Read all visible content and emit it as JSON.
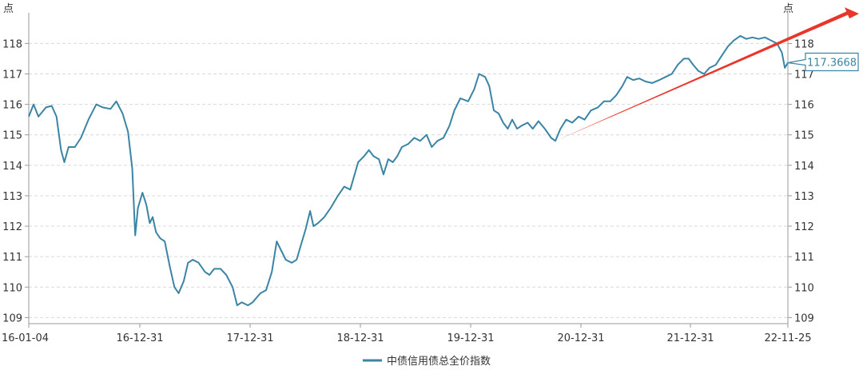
{
  "chart_data": {
    "type": "line",
    "title": "",
    "y_unit_left": "点",
    "y_unit_right": "点",
    "ylim": [
      108.8,
      118.85
    ],
    "y_ticks": [
      109,
      110,
      111,
      112,
      113,
      114,
      115,
      116,
      117,
      118
    ],
    "x_ticks": [
      "16-01-04",
      "16-12-31",
      "17-12-31",
      "18-12-31",
      "19-12-31",
      "20-12-31",
      "21-12-31",
      "22-11-25"
    ],
    "xlim": [
      "2016-01-04",
      "2022-11-25"
    ],
    "grid": true,
    "legend_position": "bottom",
    "series": [
      {
        "name": "中债信用债总全价指数",
        "color": "#3a84a6",
        "points": [
          [
            "2016-01-04",
            115.6
          ],
          [
            "2016-01-20",
            116.0
          ],
          [
            "2016-02-05",
            115.6
          ],
          [
            "2016-03-01",
            115.9
          ],
          [
            "2016-03-20",
            115.95
          ],
          [
            "2016-04-05",
            115.6
          ],
          [
            "2016-04-20",
            114.5
          ],
          [
            "2016-05-01",
            114.1
          ],
          [
            "2016-05-15",
            114.6
          ],
          [
            "2016-06-05",
            114.6
          ],
          [
            "2016-06-25",
            114.9
          ],
          [
            "2016-07-20",
            115.5
          ],
          [
            "2016-08-15",
            116.0
          ],
          [
            "2016-09-05",
            115.9
          ],
          [
            "2016-10-01",
            115.85
          ],
          [
            "2016-10-20",
            116.1
          ],
          [
            "2016-11-10",
            115.7
          ],
          [
            "2016-11-28",
            115.1
          ],
          [
            "2016-12-12",
            113.9
          ],
          [
            "2016-12-22",
            111.7
          ],
          [
            "2016-12-31",
            112.6
          ],
          [
            "2017-01-15",
            113.1
          ],
          [
            "2017-01-28",
            112.7
          ],
          [
            "2017-02-08",
            112.1
          ],
          [
            "2017-02-18",
            112.3
          ],
          [
            "2017-03-01",
            111.8
          ],
          [
            "2017-03-15",
            111.6
          ],
          [
            "2017-03-30",
            111.5
          ],
          [
            "2017-04-15",
            110.7
          ],
          [
            "2017-05-01",
            110.0
          ],
          [
            "2017-05-15",
            109.8
          ],
          [
            "2017-06-01",
            110.2
          ],
          [
            "2017-06-15",
            110.8
          ],
          [
            "2017-07-01",
            110.9
          ],
          [
            "2017-07-20",
            110.8
          ],
          [
            "2017-08-10",
            110.5
          ],
          [
            "2017-08-25",
            110.4
          ],
          [
            "2017-09-10",
            110.6
          ],
          [
            "2017-10-01",
            110.6
          ],
          [
            "2017-10-20",
            110.4
          ],
          [
            "2017-11-10",
            110.0
          ],
          [
            "2017-11-25",
            109.4
          ],
          [
            "2017-12-10",
            109.5
          ],
          [
            "2017-12-31",
            109.4
          ],
          [
            "2018-01-15",
            109.5
          ],
          [
            "2018-02-10",
            109.8
          ],
          [
            "2018-03-01",
            109.9
          ],
          [
            "2018-03-20",
            110.5
          ],
          [
            "2018-04-05",
            111.5
          ],
          [
            "2018-04-20",
            111.2
          ],
          [
            "2018-05-05",
            110.9
          ],
          [
            "2018-05-25",
            110.8
          ],
          [
            "2018-06-10",
            110.9
          ],
          [
            "2018-06-25",
            111.4
          ],
          [
            "2018-07-10",
            111.9
          ],
          [
            "2018-07-25",
            112.5
          ],
          [
            "2018-08-05",
            112.0
          ],
          [
            "2018-08-20",
            112.1
          ],
          [
            "2018-09-10",
            112.3
          ],
          [
            "2018-10-01",
            112.6
          ],
          [
            "2018-10-25",
            113.0
          ],
          [
            "2018-11-15",
            113.3
          ],
          [
            "2018-12-05",
            113.2
          ],
          [
            "2018-12-31",
            114.1
          ],
          [
            "2019-01-20",
            114.3
          ],
          [
            "2019-02-05",
            114.5
          ],
          [
            "2019-02-20",
            114.3
          ],
          [
            "2019-03-10",
            114.2
          ],
          [
            "2019-03-25",
            113.7
          ],
          [
            "2019-04-10",
            114.2
          ],
          [
            "2019-04-25",
            114.1
          ],
          [
            "2019-05-10",
            114.3
          ],
          [
            "2019-05-25",
            114.6
          ],
          [
            "2019-06-15",
            114.7
          ],
          [
            "2019-07-05",
            114.9
          ],
          [
            "2019-07-25",
            114.8
          ],
          [
            "2019-08-15",
            115.0
          ],
          [
            "2019-09-01",
            114.6
          ],
          [
            "2019-09-20",
            114.8
          ],
          [
            "2019-10-10",
            114.9
          ],
          [
            "2019-10-30",
            115.3
          ],
          [
            "2019-11-15",
            115.8
          ],
          [
            "2019-12-05",
            116.2
          ],
          [
            "2019-12-31",
            116.1
          ],
          [
            "2020-01-20",
            116.5
          ],
          [
            "2020-02-05",
            117.0
          ],
          [
            "2020-02-25",
            116.9
          ],
          [
            "2020-03-10",
            116.6
          ],
          [
            "2020-03-25",
            115.8
          ],
          [
            "2020-04-10",
            115.7
          ],
          [
            "2020-04-25",
            115.4
          ],
          [
            "2020-05-10",
            115.2
          ],
          [
            "2020-05-25",
            115.5
          ],
          [
            "2020-06-10",
            115.2
          ],
          [
            "2020-06-25",
            115.3
          ],
          [
            "2020-07-15",
            115.4
          ],
          [
            "2020-08-01",
            115.2
          ],
          [
            "2020-08-20",
            115.45
          ],
          [
            "2020-09-10",
            115.2
          ],
          [
            "2020-10-01",
            114.9
          ],
          [
            "2020-10-15",
            114.8
          ],
          [
            "2020-11-01",
            115.2
          ],
          [
            "2020-11-20",
            115.5
          ],
          [
            "2020-12-10",
            115.4
          ],
          [
            "2020-12-31",
            115.6
          ],
          [
            "2021-01-20",
            115.5
          ],
          [
            "2021-02-10",
            115.8
          ],
          [
            "2021-03-05",
            115.9
          ],
          [
            "2021-03-25",
            116.1
          ],
          [
            "2021-04-15",
            116.1
          ],
          [
            "2021-05-05",
            116.3
          ],
          [
            "2021-05-25",
            116.6
          ],
          [
            "2021-06-10",
            116.9
          ],
          [
            "2021-06-30",
            116.8
          ],
          [
            "2021-07-20",
            116.85
          ],
          [
            "2021-08-10",
            116.75
          ],
          [
            "2021-09-01",
            116.7
          ],
          [
            "2021-09-25",
            116.8
          ],
          [
            "2021-10-15",
            116.9
          ],
          [
            "2021-11-05",
            117.0
          ],
          [
            "2021-11-25",
            117.3
          ],
          [
            "2021-12-15",
            117.5
          ],
          [
            "2021-12-31",
            117.5
          ],
          [
            "2022-01-15",
            117.3
          ],
          [
            "2022-02-01",
            117.1
          ],
          [
            "2022-02-20",
            117.0
          ],
          [
            "2022-03-10",
            117.2
          ],
          [
            "2022-03-31",
            117.3
          ],
          [
            "2022-04-20",
            117.6
          ],
          [
            "2022-05-10",
            117.9
          ],
          [
            "2022-05-30",
            118.1
          ],
          [
            "2022-06-20",
            118.25
          ],
          [
            "2022-07-10",
            118.15
          ],
          [
            "2022-07-30",
            118.2
          ],
          [
            "2022-08-20",
            118.15
          ],
          [
            "2022-09-10",
            118.2
          ],
          [
            "2022-09-30",
            118.1
          ],
          [
            "2022-10-20",
            118.0
          ],
          [
            "2022-11-05",
            117.7
          ],
          [
            "2022-11-15",
            117.2
          ],
          [
            "2022-11-25",
            117.3668
          ]
        ]
      }
    ],
    "trend_arrow": {
      "color": "#e8362a",
      "from": [
        "2020-10-15",
        114.8
      ],
      "to": [
        "2022-11-25",
        118.0
      ]
    },
    "tooltip": {
      "x": "2022-11-25",
      "y": 117.3668,
      "label": "117.3668",
      "color": "#3a84a6"
    }
  }
}
